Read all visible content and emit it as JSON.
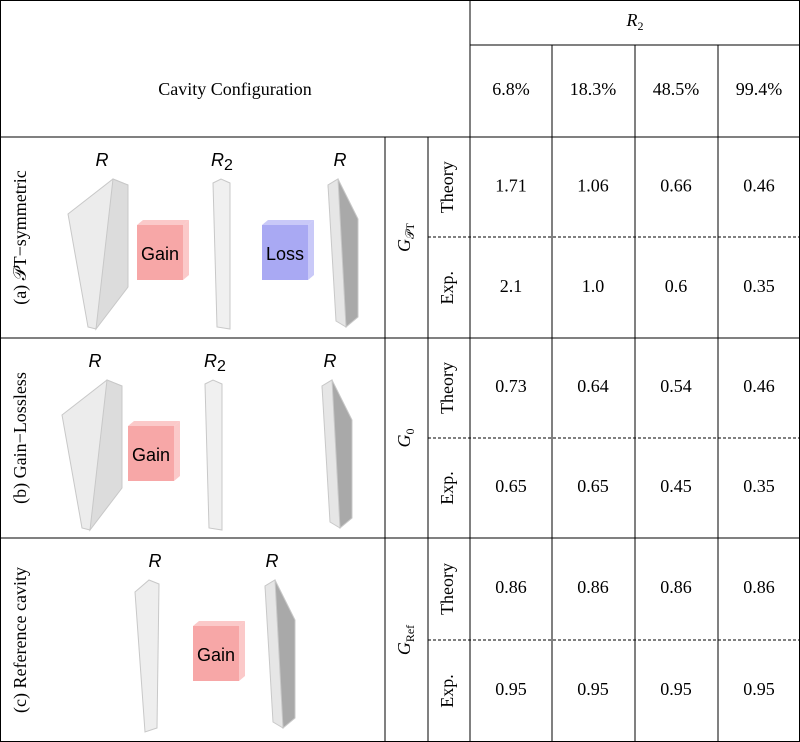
{
  "header": {
    "r2_label": {
      "base": "R",
      "sub": "2"
    },
    "config_label": "Cavity Configuration",
    "reflectivities": [
      "6.8%",
      "18.3%",
      "48.5%",
      "99.4%"
    ]
  },
  "sections": [
    {
      "config": "(a) 𝒫T−symmetric",
      "gain_label": {
        "base": "G",
        "sub": "𝒫T"
      },
      "diagram": {
        "mirrors": [
          {
            "base": "R"
          },
          {
            "base": "R",
            "sub": "2"
          },
          {
            "base": "R"
          }
        ],
        "gain": "Gain",
        "loss": "Loss"
      },
      "theory_label": "Theory",
      "theory": [
        "1.71",
        "1.06",
        "0.66",
        "0.46"
      ],
      "exp_label": "Exp.",
      "exp": [
        "2.1",
        "1.0",
        "0.6",
        "0.35"
      ]
    },
    {
      "config": "(b) Gain−Lossless",
      "gain_label": {
        "base": "G",
        "sub": "0"
      },
      "diagram": {
        "mirrors": [
          {
            "base": "R"
          },
          {
            "base": "R",
            "sub": "2"
          },
          {
            "base": "R"
          }
        ],
        "gain": "Gain"
      },
      "theory_label": "Theory",
      "theory": [
        "0.73",
        "0.64",
        "0.54",
        "0.46"
      ],
      "exp_label": "Exp.",
      "exp": [
        "0.65",
        "0.65",
        "0.45",
        "0.35"
      ]
    },
    {
      "config": "(c) Reference cavity",
      "gain_label": {
        "base": "G",
        "sub": "Ref"
      },
      "diagram": {
        "mirrors": [
          {
            "base": "R"
          },
          {
            "base": "R"
          }
        ],
        "gain": "Gain"
      },
      "theory_label": "Theory",
      "theory": [
        "0.86",
        "0.86",
        "0.86",
        "0.86"
      ],
      "exp_label": "Exp.",
      "exp": [
        "0.95",
        "0.95",
        "0.95",
        "0.95"
      ]
    }
  ]
}
